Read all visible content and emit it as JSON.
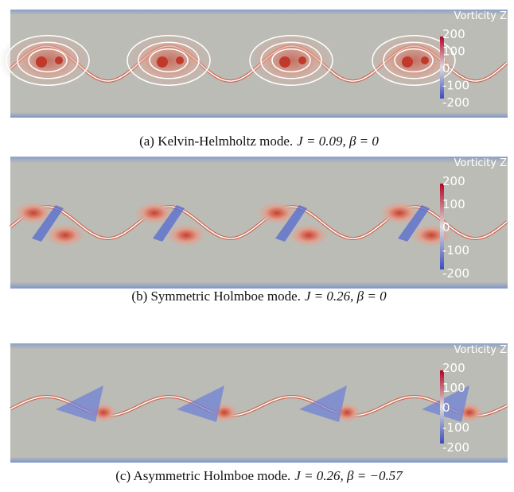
{
  "panels": [
    {
      "caption_label": "(a) Kelvin-Helmholtz mode.",
      "caption_math": "J = 0.09, β = 0",
      "colorbar": {
        "title": "Vorticity Z",
        "ticks": [
          200,
          100,
          0,
          -100,
          -200
        ]
      }
    },
    {
      "caption_label": "(b) Symmetric Holmboe mode.",
      "caption_math": "J = 0.26, β = 0",
      "colorbar": {
        "title": "Vorticity Z",
        "ticks": [
          200,
          100,
          0,
          -100,
          -200
        ]
      }
    },
    {
      "caption_label": "(c) Asymmetric Holmboe mode.",
      "caption_math": "J = 0.26, β = −0.57",
      "colorbar": {
        "title": "Vorticity Z",
        "ticks": [
          200,
          100,
          0,
          -100,
          -200
        ]
      }
    }
  ]
}
